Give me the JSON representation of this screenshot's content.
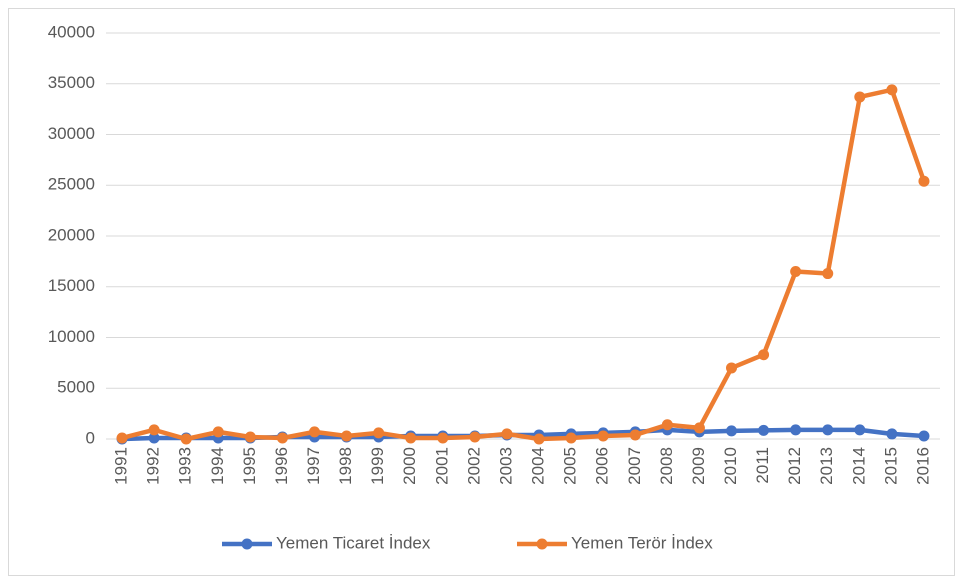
{
  "chart_data": {
    "type": "line",
    "categories": [
      "1991",
      "1992",
      "1993",
      "1994",
      "1995",
      "1996",
      "1997",
      "1998",
      "1999",
      "2000",
      "2001",
      "2002",
      "2003",
      "2004",
      "2005",
      "2006",
      "2007",
      "2008",
      "2009",
      "2010",
      "2011",
      "2012",
      "2013",
      "2014",
      "2015",
      "2016"
    ],
    "series": [
      {
        "name": "Yemen Ticaret İndex",
        "color": "#4472c4",
        "values": [
          0,
          100,
          100,
          100,
          100,
          200,
          200,
          200,
          200,
          300,
          300,
          300,
          400,
          400,
          500,
          600,
          700,
          900,
          700,
          800,
          850,
          900,
          900,
          900,
          500,
          300
        ]
      },
      {
        "name": "Yemen Terör İndex",
        "color": "#ed7d31",
        "values": [
          100,
          900,
          0,
          700,
          200,
          100,
          700,
          300,
          600,
          100,
          100,
          200,
          500,
          0,
          100,
          300,
          400,
          1400,
          1100,
          7000,
          8300,
          16500,
          16300,
          33700,
          34400,
          25400
        ]
      }
    ],
    "ylim": [
      0,
      40000
    ],
    "yticks": [
      0,
      5000,
      10000,
      15000,
      20000,
      25000,
      30000,
      35000,
      40000
    ],
    "grid": true,
    "legend": "bottom"
  }
}
